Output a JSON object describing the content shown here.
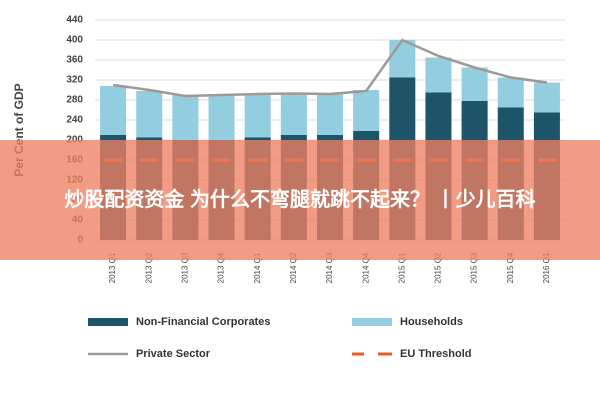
{
  "chart_data": {
    "type": "stacked_bar_line",
    "ylabel": "Per Cent of GDP",
    "categories": [
      "2013 Q1",
      "2013 Q2",
      "2013 Q3",
      "2013 Q4",
      "2014 Q1",
      "2014 Q2",
      "2014 Q3",
      "2014 Q4",
      "2015 Q1",
      "2015 Q2",
      "2015 Q3",
      "2015 Q4",
      "2016 Q1"
    ],
    "series": [
      {
        "name": "Non-Financial Corporates",
        "color": "#1d5468",
        "kind": "bar",
        "values": [
          210,
          205,
          200,
          200,
          205,
          210,
          210,
          218,
          325,
          295,
          278,
          265,
          255
        ]
      },
      {
        "name": "Households",
        "color": "#93cde0",
        "kind": "bar",
        "values": [
          98,
          93,
          90,
          92,
          88,
          85,
          83,
          82,
          75,
          70,
          67,
          60,
          60
        ]
      },
      {
        "name": "Private Sector",
        "color": "#9a9a9a",
        "kind": "line",
        "values": [
          310,
          300,
          288,
          290,
          292,
          293,
          292,
          298,
          400,
          368,
          345,
          325,
          315
        ]
      },
      {
        "name": "EU Threshold",
        "color": "#f05a1e",
        "kind": "dashed",
        "values": [
          160,
          160,
          160,
          160,
          160,
          160,
          160,
          160,
          160,
          160,
          160,
          160,
          160
        ]
      }
    ],
    "ylim": [
      0,
      440
    ],
    "yticks": [
      0,
      40,
      80,
      120,
      160,
      200,
      240,
      280,
      320,
      360,
      400,
      440
    ],
    "grid": true
  },
  "overlay_text": "炒股配资资金 为什么不弯腿就跳不起来？ 丨少儿百科"
}
